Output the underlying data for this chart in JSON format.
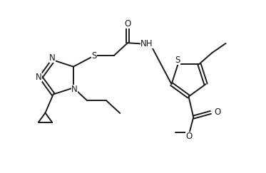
{
  "background": "#ffffff",
  "line_color": "#1a1a1a",
  "line_width": 1.4,
  "font_size": 8.5,
  "figsize": [
    3.73,
    2.43
  ],
  "dpi": 100,
  "xlim": [
    0,
    10
  ],
  "ylim": [
    0,
    6.5
  ]
}
